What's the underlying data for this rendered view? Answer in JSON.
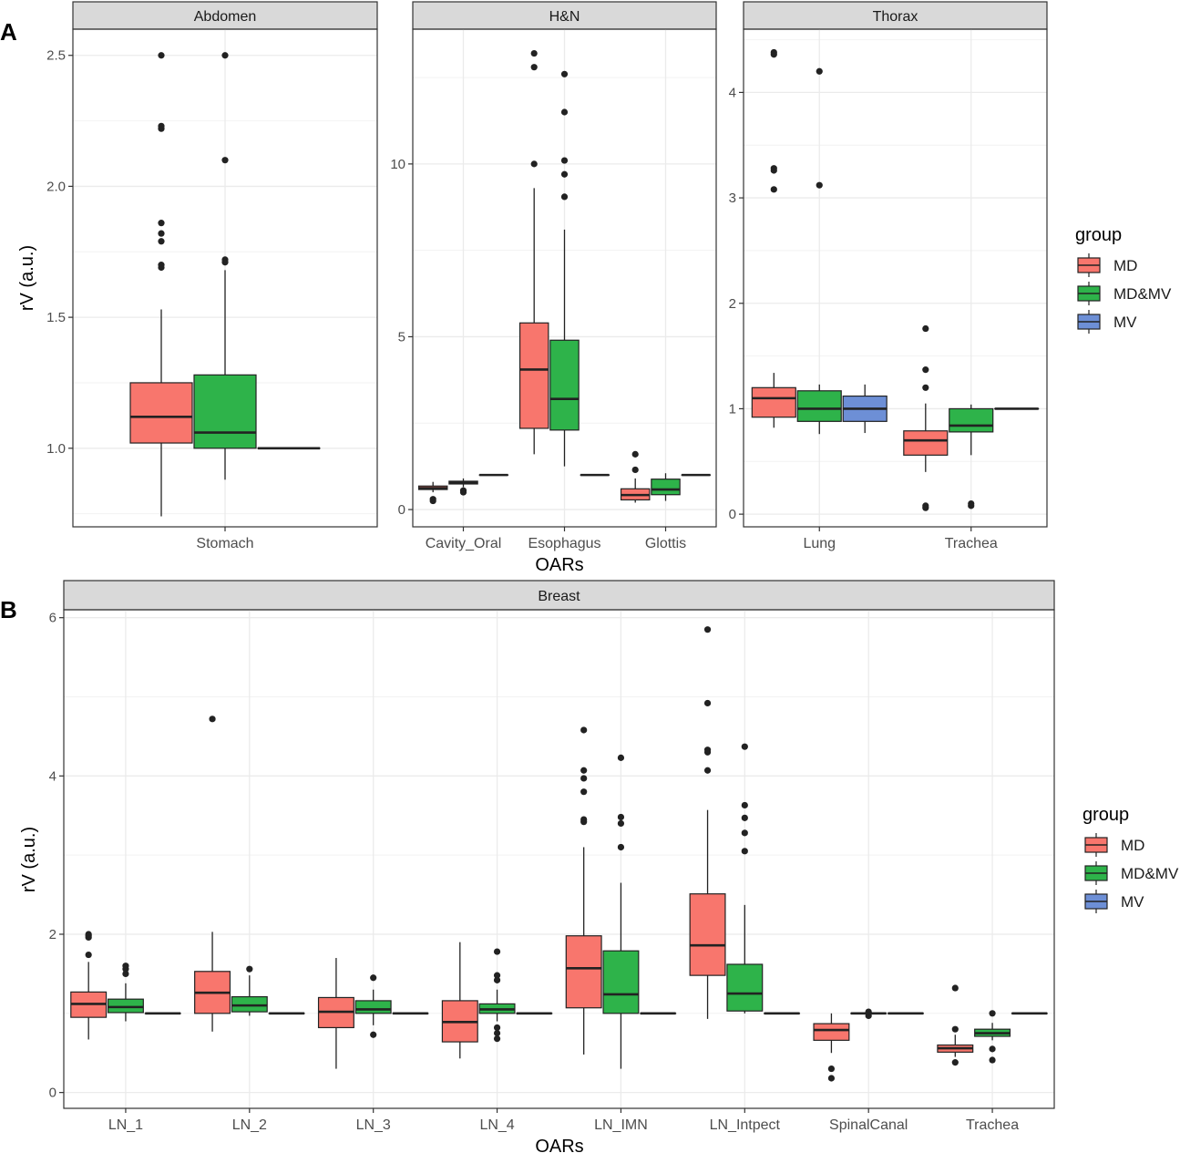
{
  "colors": {
    "MD": "#F8766D",
    "MD&MV": "#2EB34A",
    "MV": "#6D8FD6",
    "strip": "#D9D9D9",
    "grid": "#EBEBEB",
    "ink": "#222222"
  },
  "chart_data": [
    {
      "type": "box",
      "panel_label": "A",
      "ylabel": "rV (a.u.)",
      "xlabel": "OARs",
      "legend": {
        "title": "group",
        "position": "right",
        "entries": [
          "MD",
          "MD&MV",
          "MV"
        ]
      },
      "facets": [
        {
          "title": "Abdomen",
          "ylim": [
            0.7,
            2.6
          ],
          "yticks": [
            1.0,
            1.5,
            2.0,
            2.5
          ],
          "yticklabels": [
            "1.0",
            "1.5",
            "2.0",
            "2.5"
          ],
          "categories": [
            "Stomach"
          ],
          "boxes": [
            {
              "category": "Stomach",
              "group": "MD",
              "whisker_low": 0.74,
              "q1": 1.02,
              "median": 1.12,
              "q3": 1.25,
              "whisker_high": 1.53,
              "outliers": [
                1.69,
                1.7,
                1.79,
                1.82,
                1.86,
                2.22,
                2.23,
                2.5
              ]
            },
            {
              "category": "Stomach",
              "group": "MD&MV",
              "whisker_low": 0.88,
              "q1": 1.0,
              "median": 1.06,
              "q3": 1.28,
              "whisker_high": 1.68,
              "outliers": [
                1.71,
                1.72,
                2.1,
                2.5
              ]
            },
            {
              "category": "Stomach",
              "group": "MV",
              "whisker_low": 1.0,
              "q1": 1.0,
              "median": 1.0,
              "q3": 1.0,
              "whisker_high": 1.0,
              "outliers": []
            }
          ]
        },
        {
          "title": "H&N",
          "ylim": [
            -0.5,
            13.9
          ],
          "yticks": [
            0,
            5,
            10
          ],
          "yticklabels": [
            "0",
            "5",
            "10"
          ],
          "categories": [
            "Cavity_Oral",
            "Esophagus",
            "Glottis"
          ],
          "boxes": [
            {
              "category": "Cavity_Oral",
              "group": "MD",
              "whisker_low": 0.5,
              "q1": 0.58,
              "median": 0.62,
              "q3": 0.68,
              "whisker_high": 0.8,
              "outliers": [
                0.25,
                0.3
              ]
            },
            {
              "category": "Cavity_Oral",
              "group": "MD&MV",
              "whisker_low": 0.65,
              "q1": 0.74,
              "median": 0.78,
              "q3": 0.82,
              "whisker_high": 0.9,
              "outliers": [
                0.5,
                0.55
              ]
            },
            {
              "category": "Cavity_Oral",
              "group": "MV",
              "whisker_low": 1.0,
              "q1": 1.0,
              "median": 1.0,
              "q3": 1.0,
              "whisker_high": 1.0,
              "outliers": []
            },
            {
              "category": "Esophagus",
              "group": "MD",
              "whisker_low": 1.6,
              "q1": 2.35,
              "median": 4.05,
              "q3": 5.4,
              "whisker_high": 9.3,
              "outliers": [
                10.0,
                12.8,
                13.2
              ]
            },
            {
              "category": "Esophagus",
              "group": "MD&MV",
              "whisker_low": 1.25,
              "q1": 2.3,
              "median": 3.2,
              "q3": 4.9,
              "whisker_high": 8.1,
              "outliers": [
                9.05,
                9.7,
                10.1,
                11.5,
                12.6
              ]
            },
            {
              "category": "Esophagus",
              "group": "MV",
              "whisker_low": 1.0,
              "q1": 1.0,
              "median": 1.0,
              "q3": 1.0,
              "whisker_high": 1.0,
              "outliers": []
            },
            {
              "category": "Glottis",
              "group": "MD",
              "whisker_low": 0.2,
              "q1": 0.28,
              "median": 0.42,
              "q3": 0.6,
              "whisker_high": 0.9,
              "outliers": [
                1.15,
                1.6
              ]
            },
            {
              "category": "Glottis",
              "group": "MD&MV",
              "whisker_low": 0.25,
              "q1": 0.43,
              "median": 0.58,
              "q3": 0.88,
              "whisker_high": 1.05,
              "outliers": []
            },
            {
              "category": "Glottis",
              "group": "MV",
              "whisker_low": 1.0,
              "q1": 1.0,
              "median": 1.0,
              "q3": 1.0,
              "whisker_high": 1.0,
              "outliers": []
            }
          ]
        },
        {
          "title": "Thorax",
          "ylim": [
            -0.12,
            4.6
          ],
          "yticks": [
            0,
            1,
            2,
            3,
            4
          ],
          "yticklabels": [
            "0",
            "1",
            "2",
            "3",
            "4"
          ],
          "categories": [
            "Lung",
            "Trachea"
          ],
          "boxes": [
            {
              "category": "Lung",
              "group": "MD",
              "whisker_low": 0.82,
              "q1": 0.92,
              "median": 1.1,
              "q3": 1.2,
              "whisker_high": 1.34,
              "outliers": [
                3.08,
                3.26,
                3.28,
                4.36,
                4.38
              ]
            },
            {
              "category": "Lung",
              "group": "MD&MV",
              "whisker_low": 0.76,
              "q1": 0.88,
              "median": 1.0,
              "q3": 1.17,
              "whisker_high": 1.23,
              "outliers": [
                3.12,
                4.2
              ]
            },
            {
              "category": "Lung",
              "group": "MV",
              "whisker_low": 0.77,
              "q1": 0.88,
              "median": 1.0,
              "q3": 1.12,
              "whisker_high": 1.23,
              "outliers": []
            },
            {
              "category": "Trachea",
              "group": "MD",
              "whisker_low": 0.4,
              "q1": 0.56,
              "median": 0.7,
              "q3": 0.79,
              "whisker_high": 1.05,
              "outliers": [
                0.06,
                0.08,
                1.2,
                1.37,
                1.76
              ]
            },
            {
              "category": "Trachea",
              "group": "MD&MV",
              "whisker_low": 0.56,
              "q1": 0.78,
              "median": 0.84,
              "q3": 1.0,
              "whisker_high": 1.04,
              "outliers": [
                0.08,
                0.1
              ]
            },
            {
              "category": "Trachea",
              "group": "MV",
              "whisker_low": 1.0,
              "q1": 1.0,
              "median": 1.0,
              "q3": 1.0,
              "whisker_high": 1.0,
              "outliers": []
            }
          ]
        }
      ]
    },
    {
      "type": "box",
      "panel_label": "B",
      "ylabel": "rV (a.u.)",
      "xlabel": "OARs",
      "legend": {
        "title": "group",
        "position": "right",
        "entries": [
          "MD",
          "MD&MV",
          "MV"
        ]
      },
      "facets": [
        {
          "title": "Breast",
          "ylim": [
            -0.2,
            6.1
          ],
          "yticks": [
            0,
            2,
            4,
            6
          ],
          "yticklabels": [
            "0",
            "2",
            "4",
            "6"
          ],
          "categories": [
            "LN_1",
            "LN_2",
            "LN_3",
            "LN_4",
            "LN_IMN",
            "LN_Intpect",
            "SpinalCanal",
            "Trachea"
          ],
          "boxes": [
            {
              "category": "LN_1",
              "group": "MD",
              "whisker_low": 0.67,
              "q1": 0.95,
              "median": 1.12,
              "q3": 1.27,
              "whisker_high": 1.65,
              "outliers": [
                1.74,
                1.96,
                1.98,
                2.0
              ]
            },
            {
              "category": "LN_1",
              "group": "MD&MV",
              "whisker_low": 0.9,
              "q1": 1.01,
              "median": 1.08,
              "q3": 1.18,
              "whisker_high": 1.38,
              "outliers": [
                1.5,
                1.56,
                1.6
              ]
            },
            {
              "category": "LN_1",
              "group": "MV",
              "whisker_low": 1.0,
              "q1": 1.0,
              "median": 1.0,
              "q3": 1.0,
              "whisker_high": 1.0,
              "outliers": []
            },
            {
              "category": "LN_2",
              "group": "MD",
              "whisker_low": 0.77,
              "q1": 1.0,
              "median": 1.26,
              "q3": 1.53,
              "whisker_high": 2.03,
              "outliers": [
                4.72
              ]
            },
            {
              "category": "LN_2",
              "group": "MD&MV",
              "whisker_low": 0.97,
              "q1": 1.02,
              "median": 1.1,
              "q3": 1.21,
              "whisker_high": 1.48,
              "outliers": [
                1.56
              ]
            },
            {
              "category": "LN_2",
              "group": "MV",
              "whisker_low": 1.0,
              "q1": 1.0,
              "median": 1.0,
              "q3": 1.0,
              "whisker_high": 1.0,
              "outliers": []
            },
            {
              "category": "LN_3",
              "group": "MD",
              "whisker_low": 0.3,
              "q1": 0.82,
              "median": 1.02,
              "q3": 1.2,
              "whisker_high": 1.7,
              "outliers": []
            },
            {
              "category": "LN_3",
              "group": "MD&MV",
              "whisker_low": 0.85,
              "q1": 1.0,
              "median": 1.05,
              "q3": 1.16,
              "whisker_high": 1.3,
              "outliers": [
                0.73,
                1.45
              ]
            },
            {
              "category": "LN_3",
              "group": "MV",
              "whisker_low": 1.0,
              "q1": 1.0,
              "median": 1.0,
              "q3": 1.0,
              "whisker_high": 1.0,
              "outliers": []
            },
            {
              "category": "LN_4",
              "group": "MD",
              "whisker_low": 0.43,
              "q1": 0.64,
              "median": 0.89,
              "q3": 1.16,
              "whisker_high": 1.9,
              "outliers": []
            },
            {
              "category": "LN_4",
              "group": "MD&MV",
              "whisker_low": 0.9,
              "q1": 1.0,
              "median": 1.05,
              "q3": 1.12,
              "whisker_high": 1.3,
              "outliers": [
                0.68,
                0.75,
                0.82,
                1.42,
                1.48,
                1.78
              ]
            },
            {
              "category": "LN_4",
              "group": "MV",
              "whisker_low": 1.0,
              "q1": 1.0,
              "median": 1.0,
              "q3": 1.0,
              "whisker_high": 1.0,
              "outliers": []
            },
            {
              "category": "LN_IMN",
              "group": "MD",
              "whisker_low": 0.48,
              "q1": 1.07,
              "median": 1.57,
              "q3": 1.98,
              "whisker_high": 3.1,
              "outliers": [
                3.42,
                3.45,
                3.8,
                3.97,
                4.07,
                4.58
              ]
            },
            {
              "category": "LN_IMN",
              "group": "MD&MV",
              "whisker_low": 0.3,
              "q1": 1.0,
              "median": 1.24,
              "q3": 1.79,
              "whisker_high": 2.65,
              "outliers": [
                3.1,
                3.4,
                3.48,
                4.23
              ]
            },
            {
              "category": "LN_IMN",
              "group": "MV",
              "whisker_low": 1.0,
              "q1": 1.0,
              "median": 1.0,
              "q3": 1.0,
              "whisker_high": 1.0,
              "outliers": []
            },
            {
              "category": "LN_Intpect",
              "group": "MD",
              "whisker_low": 0.93,
              "q1": 1.48,
              "median": 1.86,
              "q3": 2.51,
              "whisker_high": 3.57,
              "outliers": [
                4.07,
                4.3,
                4.33,
                4.92,
                5.85
              ]
            },
            {
              "category": "LN_Intpect",
              "group": "MD&MV",
              "whisker_low": 1.0,
              "q1": 1.03,
              "median": 1.25,
              "q3": 1.62,
              "whisker_high": 2.37,
              "outliers": [
                3.05,
                3.28,
                3.47,
                3.63,
                4.37
              ]
            },
            {
              "category": "LN_Intpect",
              "group": "MV",
              "whisker_low": 1.0,
              "q1": 1.0,
              "median": 1.0,
              "q3": 1.0,
              "whisker_high": 1.0,
              "outliers": []
            },
            {
              "category": "SpinalCanal",
              "group": "MD",
              "whisker_low": 0.5,
              "q1": 0.66,
              "median": 0.79,
              "q3": 0.87,
              "whisker_high": 1.0,
              "outliers": [
                0.18,
                0.3
              ]
            },
            {
              "category": "SpinalCanal",
              "group": "MD&MV",
              "whisker_low": 1.0,
              "q1": 1.0,
              "median": 1.0,
              "q3": 1.0,
              "whisker_high": 1.0,
              "outliers": [
                0.97,
                1.02
              ]
            },
            {
              "category": "SpinalCanal",
              "group": "MV",
              "whisker_low": 1.0,
              "q1": 1.0,
              "median": 1.0,
              "q3": 1.0,
              "whisker_high": 1.0,
              "outliers": []
            },
            {
              "category": "Trachea",
              "group": "MD",
              "whisker_low": 0.45,
              "q1": 0.51,
              "median": 0.56,
              "q3": 0.6,
              "whisker_high": 0.73,
              "outliers": [
                0.38,
                0.8,
                1.32
              ]
            },
            {
              "category": "Trachea",
              "group": "MD&MV",
              "whisker_low": 0.66,
              "q1": 0.71,
              "median": 0.75,
              "q3": 0.8,
              "whisker_high": 0.88,
              "outliers": [
                0.41,
                0.55,
                1.0
              ]
            },
            {
              "category": "Trachea",
              "group": "MV",
              "whisker_low": 1.0,
              "q1": 1.0,
              "median": 1.0,
              "q3": 1.0,
              "whisker_high": 1.0,
              "outliers": []
            }
          ]
        }
      ]
    }
  ]
}
